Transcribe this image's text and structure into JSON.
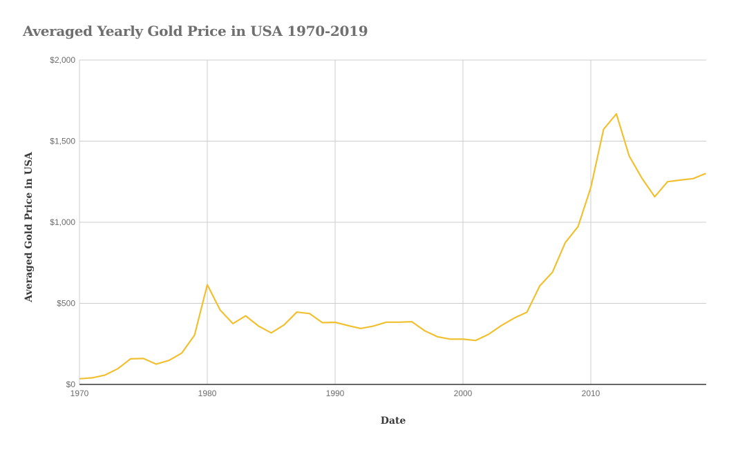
{
  "title": "Averaged Yearly Gold Price in USA 1970-2019",
  "colors": {
    "line": "#f0c030",
    "grid": "#cccccc",
    "axis": "#333333",
    "title": "#6f6f6f"
  },
  "chart_data": {
    "type": "line",
    "title": "Averaged Yearly Gold Price in USA 1970-2019",
    "xlabel": "Date",
    "ylabel": "Averaged Gold Price in USA",
    "ylim": [
      0,
      2000
    ],
    "xlim": [
      1970,
      2019
    ],
    "grid": true,
    "legend": null,
    "x_ticks": [
      1970,
      1980,
      1990,
      2000,
      2010
    ],
    "x_tick_labels": [
      "1970",
      "1980",
      "1990",
      "2000",
      "2010"
    ],
    "y_ticks": [
      0,
      500,
      1000,
      1500,
      2000
    ],
    "y_tick_labels": [
      "$0",
      "$500",
      "$1,000",
      "$1,500",
      "$2,000"
    ],
    "x": [
      1970,
      1971,
      1972,
      1973,
      1974,
      1975,
      1976,
      1977,
      1978,
      1979,
      1980,
      1981,
      1982,
      1983,
      1984,
      1985,
      1986,
      1987,
      1988,
      1989,
      1990,
      1991,
      1992,
      1993,
      1994,
      1995,
      1996,
      1997,
      1998,
      1999,
      2000,
      2001,
      2002,
      2003,
      2004,
      2005,
      2006,
      2007,
      2008,
      2009,
      2010,
      2011,
      2012,
      2013,
      2014,
      2015,
      2016,
      2017,
      2018,
      2019
    ],
    "series": [
      {
        "name": "Averaged Gold Price in USA",
        "values": [
          35,
          41,
          58,
          97,
          158,
          160,
          125,
          148,
          193,
          304,
          615,
          459,
          375,
          423,
          360,
          318,
          367,
          446,
          437,
          381,
          383,
          363,
          345,
          360,
          384,
          384,
          387,
          331,
          294,
          279,
          279,
          271,
          309,
          363,
          409,
          445,
          607,
          692,
          874,
          973,
          1214,
          1573,
          1668,
          1409,
          1271,
          1157,
          1250,
          1260,
          1269,
          1301
        ]
      }
    ]
  }
}
